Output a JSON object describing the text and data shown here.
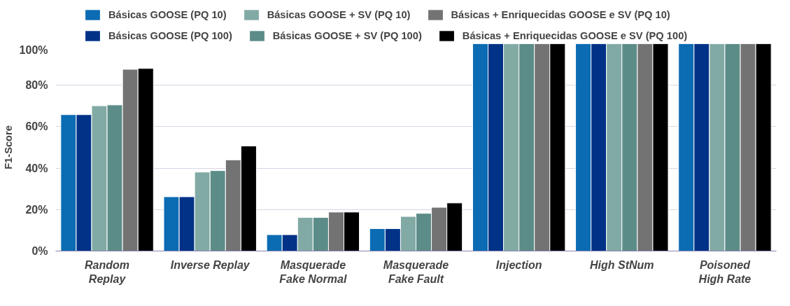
{
  "chart_data": {
    "type": "bar",
    "ylabel": "F1-Score",
    "categories": [
      "Random\nReplay",
      "Inverse Replay",
      "Masquerade\nFake Normal",
      "Masquerade\nFake Fault",
      "Injection",
      "High StNum",
      "Poisoned\nHigh Rate"
    ],
    "series": [
      {
        "name": "Básicas GOOSE (PQ 10)",
        "color": "#0b6bb3",
        "values": [
          65.8,
          26.2,
          7.9,
          10.8,
          100,
          100,
          100
        ]
      },
      {
        "name": "Básicas GOOSE (PQ 100)",
        "color": "#003287",
        "values": [
          65.8,
          26.2,
          7.9,
          10.8,
          100,
          100,
          100
        ]
      },
      {
        "name": "Básicas GOOSE + SV (PQ 10)",
        "color": "#82aaa5",
        "values": [
          70.1,
          38.1,
          16.2,
          16.7,
          100,
          100,
          100
        ]
      },
      {
        "name": "Básicas GOOSE + SV (PQ 100)",
        "color": "#5c8c88",
        "values": [
          70.5,
          38.8,
          16.2,
          18.2,
          100,
          100,
          100
        ]
      },
      {
        "name": "Básicas + Enriquecidas GOOSE e SV (PQ 10)",
        "color": "#737373",
        "values": [
          87.7,
          44.0,
          18.8,
          21.1,
          100,
          100,
          100
        ]
      },
      {
        "name": "Básicas + Enriquecidas GOOSE e SV (PQ 100)",
        "color": "#000000",
        "values": [
          88.1,
          50.7,
          18.8,
          23.2,
          100,
          100,
          100
        ]
      }
    ],
    "ylim": [
      0,
      100
    ],
    "yticks": [
      {
        "value": 0,
        "label": "0%"
      },
      {
        "value": 20,
        "label": "20%"
      },
      {
        "value": 40,
        "label": "40%"
      },
      {
        "value": 60,
        "label": "60%"
      },
      {
        "value": 80,
        "label": "80%"
      },
      {
        "value": 100,
        "label": "100%"
      }
    ],
    "grid": "y",
    "legend": "top"
  }
}
